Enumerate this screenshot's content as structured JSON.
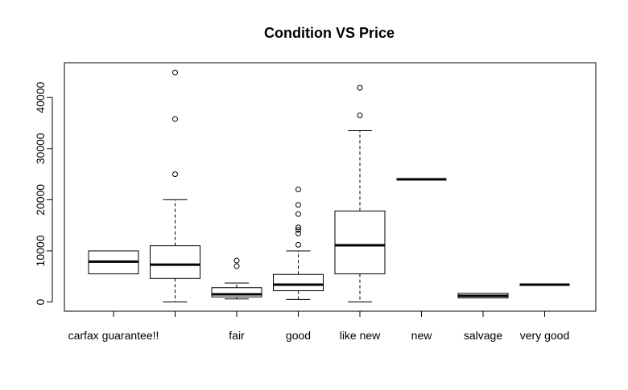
{
  "chart_data": {
    "type": "boxplot",
    "title": "Condition VS Price",
    "xlabel": "",
    "ylabel": "",
    "ylim": [
      -1800,
      46800
    ],
    "yticks": [
      0,
      10000,
      20000,
      30000,
      40000
    ],
    "categories": [
      "carfax guarantee!!",
      "",
      "fair",
      "good",
      "like new",
      "new",
      "salvage",
      "very good"
    ],
    "xticklabels_shown": [
      "carfax guarantee!!",
      "fair",
      "good",
      "like new",
      "new",
      "salvage",
      "very good"
    ],
    "boxes": [
      {
        "category": "carfax guarantee!!",
        "whisker_low": 5500,
        "q1": 5500,
        "median": 7900,
        "q3": 10000,
        "whisker_high": 10000,
        "outliers": []
      },
      {
        "category": "",
        "whisker_low": 0,
        "q1": 4600,
        "median": 7300,
        "q3": 11000,
        "whisker_high": 20000,
        "outliers": [
          25000,
          35800,
          44900
        ]
      },
      {
        "category": "fair",
        "whisker_low": 600,
        "q1": 1000,
        "median": 1500,
        "q3": 2800,
        "whisker_high": 3700,
        "outliers": [
          7000,
          8100
        ]
      },
      {
        "category": "good",
        "whisker_low": 500,
        "q1": 2200,
        "median": 3400,
        "q3": 5400,
        "whisker_high": 10000,
        "outliers": [
          11200,
          13400,
          14100,
          14600,
          17200,
          19000,
          22000
        ]
      },
      {
        "category": "like new",
        "whisker_low": 0,
        "q1": 5500,
        "median": 11100,
        "q3": 17800,
        "whisker_high": 33500,
        "outliers": [
          36500,
          41900
        ]
      },
      {
        "category": "new",
        "whisker_low": 24000,
        "q1": 24000,
        "median": 24000,
        "q3": 24000,
        "whisker_high": 24000,
        "outliers": []
      },
      {
        "category": "salvage",
        "whisker_low": 800,
        "q1": 800,
        "median": 1200,
        "q3": 1700,
        "whisker_high": 1700,
        "outliers": []
      },
      {
        "category": "very good",
        "whisker_low": 3400,
        "q1": 3400,
        "median": 3400,
        "q3": 3400,
        "whisker_high": 3400,
        "outliers": []
      }
    ],
    "grid": false,
    "legend": "none"
  }
}
